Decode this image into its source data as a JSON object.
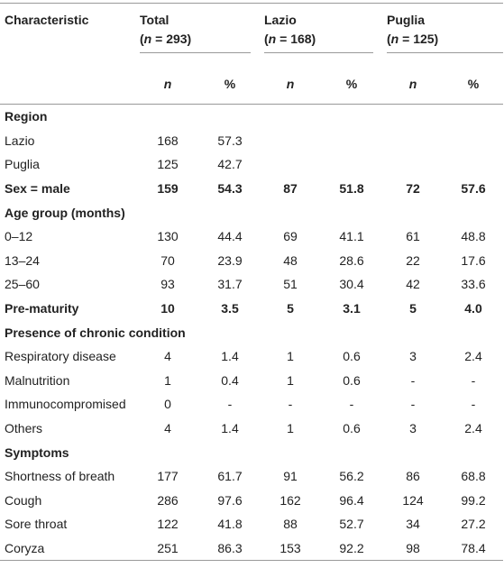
{
  "table": {
    "header": {
      "label": "Characteristic",
      "groups": [
        {
          "name": "Total",
          "open": "(",
          "var": "n",
          "rest": " = 293)"
        },
        {
          "name": "Lazio",
          "open": "(",
          "var": "n",
          "rest": " = 168)"
        },
        {
          "name": "Puglia",
          "open": "(",
          "var": "n",
          "rest": " = 125)"
        }
      ],
      "subheads": [
        "n",
        "%",
        "n",
        "%",
        "n",
        "%"
      ]
    },
    "rows": [
      {
        "bold": true,
        "cells": [
          "Region"
        ]
      },
      {
        "bold": false,
        "cells": [
          "Lazio",
          "168",
          "57.3"
        ]
      },
      {
        "bold": false,
        "cells": [
          "Puglia",
          "125",
          "42.7"
        ]
      },
      {
        "bold": true,
        "cells": [
          "Sex = male",
          "159",
          "54.3",
          "87",
          "51.8",
          "72",
          "57.6"
        ]
      },
      {
        "bold": true,
        "cells": [
          "Age group (months)"
        ]
      },
      {
        "bold": false,
        "cells": [
          "0–12",
          "130",
          "44.4",
          "69",
          "41.1",
          "61",
          "48.8"
        ]
      },
      {
        "bold": false,
        "cells": [
          "13–24",
          "70",
          "23.9",
          "48",
          "28.6",
          "22",
          "17.6"
        ]
      },
      {
        "bold": false,
        "cells": [
          "25–60",
          "93",
          "31.7",
          "51",
          "30.4",
          "42",
          "33.6"
        ]
      },
      {
        "bold": true,
        "cells": [
          "Pre-maturity",
          "10",
          "3.5",
          "5",
          "3.1",
          "5",
          "4.0"
        ]
      },
      {
        "bold": true,
        "cells": [
          "Presence of chronic condition"
        ]
      },
      {
        "bold": false,
        "cells": [
          "Respiratory disease",
          "4",
          "1.4",
          "1",
          "0.6",
          "3",
          "2.4"
        ]
      },
      {
        "bold": false,
        "cells": [
          "Malnutrition",
          "1",
          "0.4",
          "1",
          "0.6",
          "-",
          "-"
        ]
      },
      {
        "bold": false,
        "cells": [
          "Immunocompromised",
          "0",
          "-",
          "-",
          "-",
          "-",
          "-"
        ]
      },
      {
        "bold": false,
        "cells": [
          "Others",
          "4",
          "1.4",
          "1",
          "0.6",
          "3",
          "2.4"
        ]
      },
      {
        "bold": true,
        "cells": [
          "Symptoms"
        ]
      },
      {
        "bold": false,
        "cells": [
          "Shortness of breath",
          "177",
          "61.7",
          "91",
          "56.2",
          "86",
          "68.8"
        ]
      },
      {
        "bold": false,
        "cells": [
          "Cough",
          "286",
          "97.6",
          "162",
          "96.4",
          "124",
          "99.2"
        ]
      },
      {
        "bold": false,
        "cells": [
          "Sore throat",
          "122",
          "41.8",
          "88",
          "52.7",
          "34",
          "27.2"
        ]
      },
      {
        "bold": false,
        "cells": [
          "Coryza",
          "251",
          "86.3",
          "153",
          "92.2",
          "98",
          "78.4"
        ]
      }
    ]
  }
}
